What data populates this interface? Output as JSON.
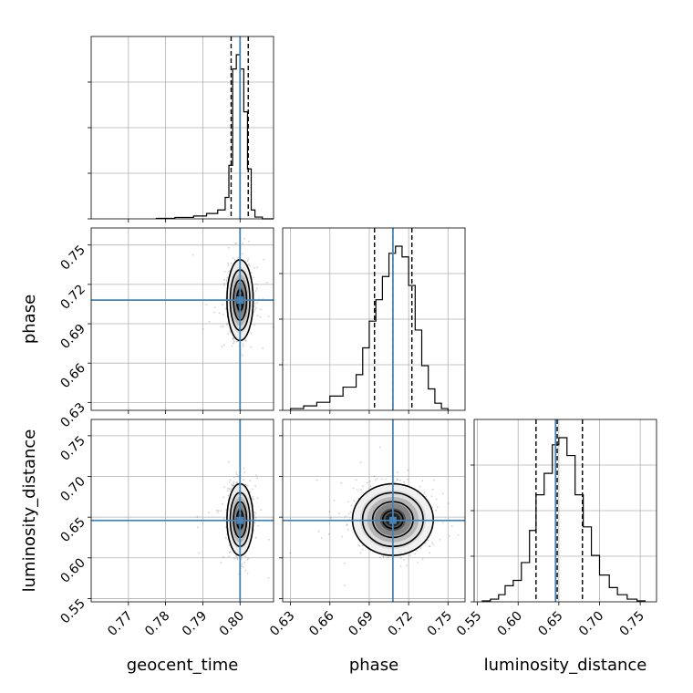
{
  "chart_data": {
    "type": "corner",
    "parameters": [
      "geocent_time",
      "phase",
      "luminosity_distance"
    ],
    "truths": {
      "geocent_time": 0.8,
      "phase": 0.708,
      "luminosity_distance": 0.646
    },
    "truth_color": "#4682b4",
    "ticks": {
      "geocent_time": [
        "0.77",
        "0.78",
        "0.79",
        "0.80"
      ],
      "phase": [
        "0.63",
        "0.66",
        "0.69",
        "0.72",
        "0.75"
      ],
      "luminosity_distance": [
        "0.55",
        "0.60",
        "0.65",
        "0.70",
        "0.75"
      ]
    },
    "axis_ranges": {
      "geocent_time": [
        0.76,
        0.809
      ],
      "phase": [
        0.624,
        0.763
      ],
      "luminosity_distance": [
        0.546,
        0.77
      ]
    },
    "grid": true,
    "marginals": [
      {
        "parameter": "geocent_time",
        "bin_edges": [
          0.7775,
          0.7825,
          0.7875,
          0.791,
          0.794,
          0.796,
          0.797,
          0.798,
          0.799,
          0.8,
          0.801,
          0.802,
          0.803,
          0.804,
          0.806,
          0.809
        ],
        "counts": [
          0.003,
          0.008,
          0.016,
          0.03,
          0.05,
          0.12,
          0.3,
          0.84,
          0.92,
          0.84,
          0.6,
          0.28,
          0.05,
          0.01,
          0.0
        ],
        "quantiles": [
          0.7976,
          0.8,
          0.8022
        ]
      },
      {
        "parameter": "phase",
        "bin_edges": [
          0.63,
          0.64,
          0.65,
          0.66,
          0.67,
          0.68,
          0.685,
          0.69,
          0.695,
          0.7,
          0.705,
          0.71,
          0.715,
          0.72,
          0.725,
          0.73,
          0.735,
          0.74,
          0.745,
          0.75
        ],
        "counts": [
          0.01,
          0.025,
          0.045,
          0.08,
          0.13,
          0.2,
          0.35,
          0.5,
          0.62,
          0.75,
          0.88,
          0.92,
          0.86,
          0.7,
          0.45,
          0.25,
          0.12,
          0.04,
          0.01
        ],
        "quantiles": [
          0.694,
          0.708,
          0.7225
        ]
      },
      {
        "parameter": "luminosity_distance",
        "bin_edges": [
          0.556,
          0.566,
          0.576,
          0.584,
          0.594,
          0.604,
          0.614,
          0.622,
          0.632,
          0.642,
          0.65,
          0.66,
          0.67,
          0.68,
          0.69,
          0.7,
          0.712,
          0.722,
          0.734,
          0.746,
          0.756
        ],
        "counts": [
          0.005,
          0.015,
          0.04,
          0.09,
          0.12,
          0.22,
          0.4,
          0.6,
          0.72,
          0.88,
          0.92,
          0.82,
          0.6,
          0.42,
          0.26,
          0.15,
          0.08,
          0.04,
          0.015,
          0.005
        ],
        "quantiles": [
          0.622,
          0.648,
          0.679
        ]
      }
    ],
    "joint": [
      {
        "x": "geocent_time",
        "y": "phase",
        "center": [
          0.8,
          0.708
        ],
        "sd": [
          0.0016,
          0.014
        ],
        "contours": [
          "0.5 sigma",
          "1 sigma",
          "1.5 sigma",
          "2 sigma"
        ]
      },
      {
        "x": "geocent_time",
        "y": "luminosity_distance",
        "center": [
          0.8,
          0.647
        ],
        "sd": [
          0.0016,
          0.02
        ],
        "contours": [
          "0.5 sigma",
          "1 sigma",
          "1.5 sigma",
          "2 sigma"
        ]
      },
      {
        "x": "phase",
        "y": "luminosity_distance",
        "center": [
          0.708,
          0.647
        ],
        "sd": [
          0.014,
          0.02
        ],
        "contours": [
          "0.5 sigma",
          "1 sigma",
          "1.5 sigma",
          "2 sigma"
        ]
      }
    ]
  }
}
